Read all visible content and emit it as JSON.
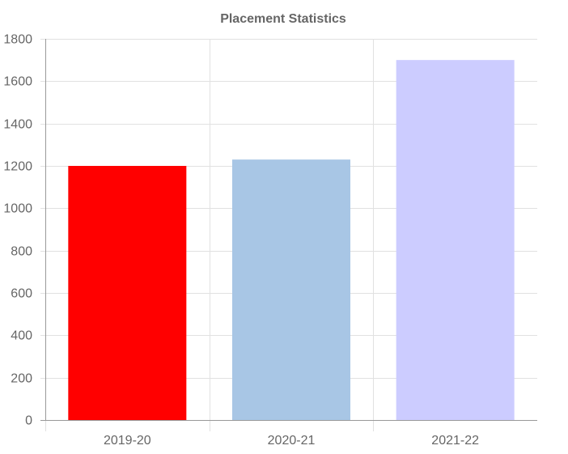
{
  "chart_data": {
    "type": "bar",
    "title": "Placement Statistics",
    "xlabel": "",
    "ylabel": "",
    "categories": [
      "2019-20",
      "2020-21",
      "2021-22"
    ],
    "values": [
      1200,
      1230,
      1700
    ],
    "colors": [
      "#ff0000",
      "#a8c6e5",
      "#ccccff"
    ],
    "ylim": [
      0,
      1800
    ],
    "yticks": [
      0,
      200,
      400,
      600,
      800,
      1000,
      1200,
      1400,
      1600,
      1800
    ],
    "grid": true,
    "legend": "none"
  },
  "style": {
    "grid_color": "#e1e1e1",
    "axis_color": "#999999",
    "text_color": "#666666"
  }
}
